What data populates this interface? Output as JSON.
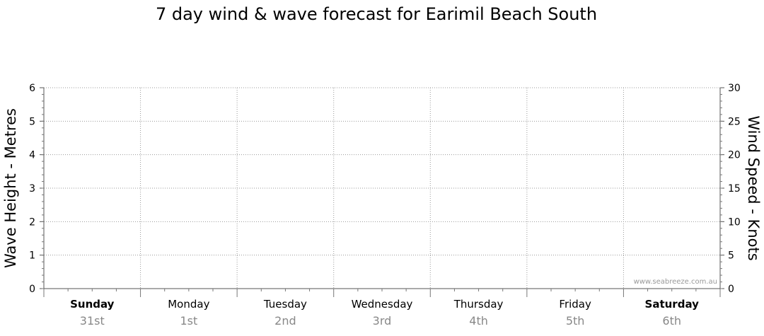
{
  "chart_data": {
    "type": "line",
    "title": "7 day wind & wave forecast for Earimil Beach South",
    "y_left_label": "Wave Height - Metres",
    "y_right_label": "Wind Speed - Knots",
    "y_left_range": [
      0,
      6
    ],
    "y_left_ticks": [
      "0",
      "1",
      "2",
      "3",
      "4",
      "5",
      "6"
    ],
    "y_right_range": [
      0,
      30
    ],
    "y_right_ticks": [
      "0",
      "5",
      "10",
      "15",
      "20",
      "25",
      "30"
    ],
    "grid": true,
    "days": [
      {
        "day": "Sunday",
        "date": "31st",
        "weekend": true
      },
      {
        "day": "Monday",
        "date": "1st",
        "weekend": false
      },
      {
        "day": "Tuesday",
        "date": "2nd",
        "weekend": false
      },
      {
        "day": "Wednesday",
        "date": "3rd",
        "weekend": false
      },
      {
        "day": "Thursday",
        "date": "4th",
        "weekend": false
      },
      {
        "day": "Friday",
        "date": "5th",
        "weekend": false
      },
      {
        "day": "Saturday",
        "date": "6th",
        "weekend": true
      }
    ],
    "series": [],
    "watermark": "www.seabreeze.com.au"
  }
}
